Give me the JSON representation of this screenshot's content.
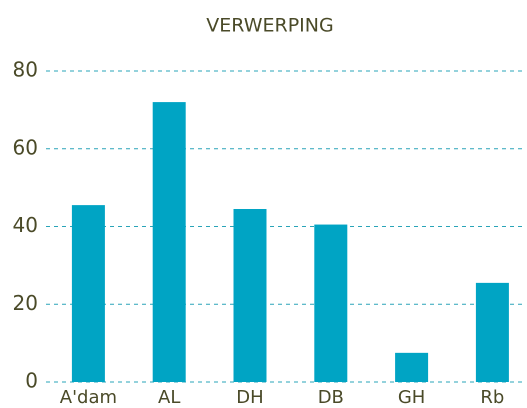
{
  "chart_data": {
    "type": "bar",
    "title": "VERWERPING",
    "categories": [
      "A'dam",
      "AL",
      "DH",
      "DB",
      "GH",
      "Rb"
    ],
    "values": [
      45.5,
      72,
      44.5,
      40.5,
      7.5,
      25.5
    ],
    "color": "#00a4c4",
    "ylim": [
      0,
      80
    ],
    "yticks": [
      0,
      20,
      40,
      60,
      80
    ],
    "grid": true
  }
}
